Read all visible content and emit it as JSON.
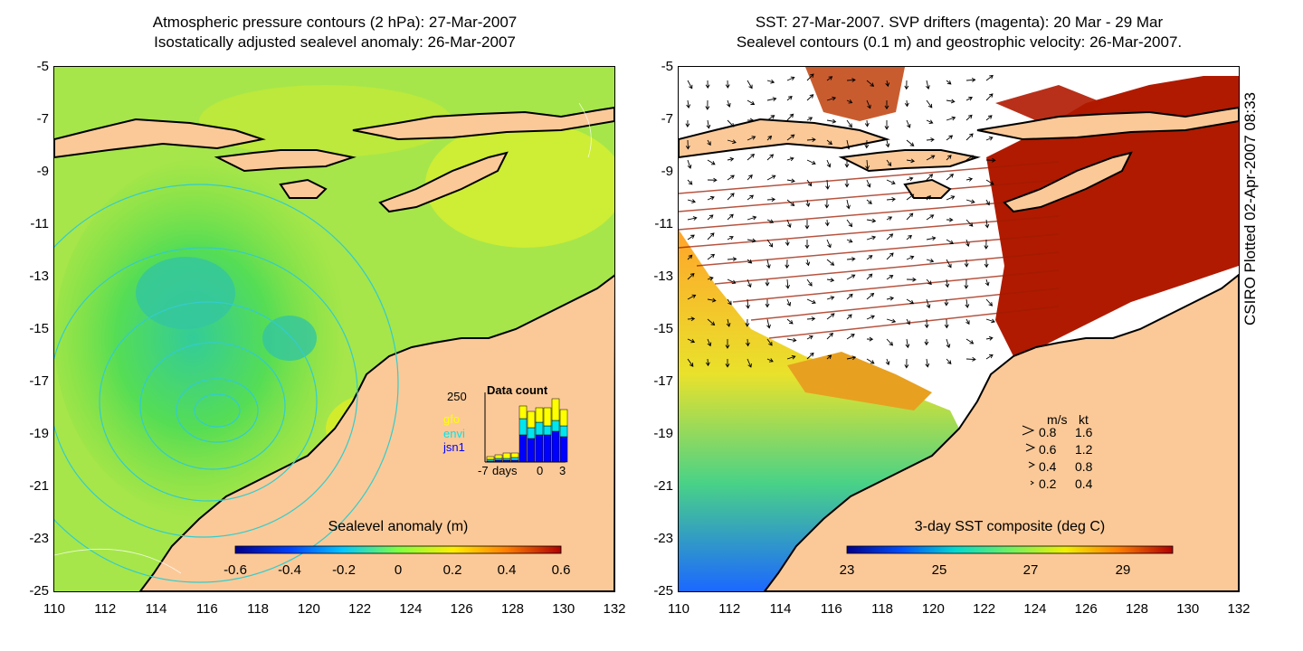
{
  "left_panel": {
    "title_line1": "Atmospheric pressure contours (2 hPa): 27-Mar-2007",
    "title_line2": "Isostatically adjusted sealevel anomaly: 26-Mar-2007",
    "colorbar": {
      "label": "Sealevel anomaly (m)",
      "ticks": [
        "-0.6",
        "-0.4",
        "-0.2",
        "0",
        "0.2",
        "0.4",
        "0.6"
      ]
    },
    "inset": {
      "title": "Data count",
      "ymax_label": "250",
      "series_labels": [
        "gfo",
        "envi",
        "jsn1"
      ],
      "series_colors": [
        "#ffff00",
        "#00e5ee",
        "#0000ff"
      ],
      "x_labels": [
        "-7",
        "days",
        "0",
        "3"
      ]
    }
  },
  "right_panel": {
    "title_line1": "SST: 27-Mar-2007. SVP drifters (magenta): 20 Mar - 29 Mar",
    "title_line2": "Sealevel contours (0.1 m) and geostrophic velocity: 26-Mar-2007.",
    "colorbar": {
      "label": "3-day SST composite (deg C)",
      "ticks": [
        "23",
        "25",
        "27",
        "29"
      ]
    },
    "velocity_legend": {
      "header_ms": "m/s",
      "header_kt": "kt",
      "rows": [
        {
          "ms": "0.8",
          "kt": "1.6"
        },
        {
          "ms": "0.6",
          "kt": "1.2"
        },
        {
          "ms": "0.4",
          "kt": "0.8"
        },
        {
          "ms": "0.2",
          "kt": "0.4"
        }
      ]
    }
  },
  "axes": {
    "y_ticks": [
      "-5",
      "-7",
      "-9",
      "-11",
      "-13",
      "-15",
      "-17",
      "-19",
      "-21",
      "-23",
      "-25"
    ],
    "x_ticks": [
      "110",
      "112",
      "114",
      "116",
      "118",
      "120",
      "122",
      "124",
      "126",
      "128",
      "130",
      "132"
    ]
  },
  "credit": "CSIRO Plotted 02-Apr-2007 08:33",
  "colors": {
    "land": "#fbc998",
    "ocean_green": "#a6e64a",
    "sst_warm": "#b01a00",
    "contour_cyan": "#33cccc"
  }
}
